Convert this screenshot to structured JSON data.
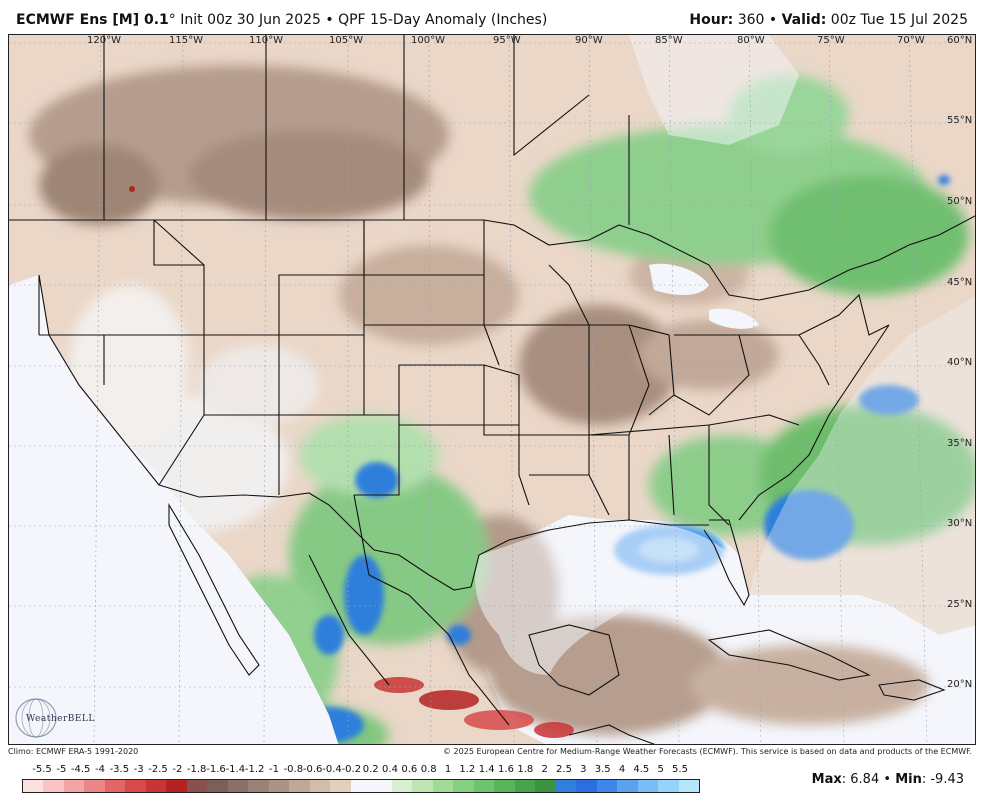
{
  "header": {
    "model": "ECMWF Ens [M] 0.1",
    "degree": "°",
    "init": "Init 00z 30 Jun 2025",
    "sep": "•",
    "product": "QPF 15-Day Anomaly (Inches)",
    "hour_label": "Hour:",
    "hour_value": "360",
    "valid_label": "Valid:",
    "valid_value": "00z Tue 15 Jul 2025"
  },
  "map": {
    "lon_labels": [
      "120°W",
      "115°W",
      "110°W",
      "105°W",
      "100°W",
      "95°W",
      "90°W",
      "85°W",
      "80°W",
      "75°W",
      "70°W"
    ],
    "lat_labels": [
      "60°N",
      "55°N",
      "50°N",
      "45°N",
      "40°N",
      "35°N",
      "30°N",
      "25°N",
      "20°N"
    ],
    "colors": {
      "water": "#f4f6fb",
      "land_border": "#111111",
      "grid": "#9aa3b5"
    }
  },
  "logo": {
    "text": "WeatherBELL"
  },
  "footer": {
    "climo": "Climo: ECMWF ERA-5 1991-2020",
    "credit": "© 2025 European Centre for Medium-Range Weather Forecasts (ECMWF). This service is based on data and products of the ECMWF."
  },
  "colorbar": {
    "labels": [
      "-5.5",
      "-5",
      "-4.5",
      "-4",
      "-3.5",
      "-3",
      "-2.5",
      "-2",
      "-1.8",
      "-1.6",
      "-1.4",
      "-1.2",
      "-1",
      "-0.8",
      "-0.6",
      "-0.4",
      "-0.2",
      "0.2",
      "0.4",
      "0.6",
      "0.8",
      "1",
      "1.2",
      "1.4",
      "1.6",
      "1.8",
      "2",
      "2.5",
      "3",
      "3.5",
      "4",
      "4.5",
      "5",
      "5.5"
    ],
    "colors": [
      "#fde0e0",
      "#f9c4c4",
      "#f3a4a4",
      "#ec8585",
      "#e36666",
      "#d84a4a",
      "#c93434",
      "#b52222",
      "#8a5050",
      "#7a6058",
      "#8a7068",
      "#9a8276",
      "#ab9486",
      "#bfa898",
      "#d2bcaa",
      "#e2cfbe",
      "#f4f6fb",
      "#f4f6fb",
      "#d8efd2",
      "#bde6b4",
      "#a2db98",
      "#86cf80",
      "#6ec46c",
      "#58b55a",
      "#47a44b",
      "#3b933f",
      "#2f7fdb",
      "#2a6ee0",
      "#3d86ea",
      "#5aa2f0",
      "#78bdf5",
      "#95d4f8",
      "#b5e6fb"
    ]
  },
  "stats": {
    "max_label": "Max",
    "max_value": "6.84",
    "dot": "•",
    "min_label": "Min",
    "min_value": "-9.43"
  }
}
